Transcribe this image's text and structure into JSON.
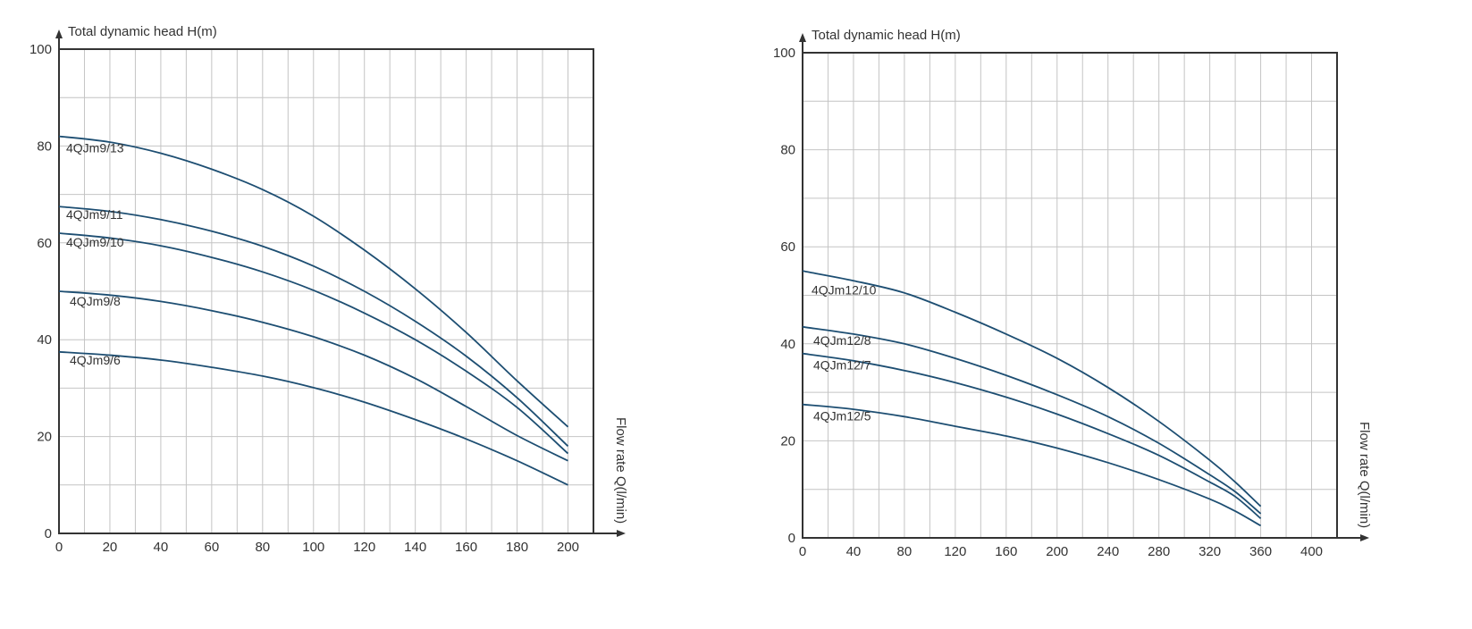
{
  "chart_data": [
    {
      "type": "line",
      "ylabel": "Total dynamic head H(m)",
      "xlabel": "Flow rate Q(l/min)",
      "xlim": [
        0,
        210
      ],
      "ylim": [
        0,
        100
      ],
      "x_ticks": [
        0,
        20,
        40,
        60,
        80,
        100,
        120,
        140,
        160,
        180,
        200
      ],
      "y_ticks": [
        0,
        20,
        40,
        60,
        80,
        100
      ],
      "x_grid_step": 10,
      "y_grid_step": 10,
      "grid": true,
      "line_color": "#1d4e72",
      "series": [
        {
          "name": "4QJm9/13",
          "x": [
            0,
            20,
            40,
            60,
            80,
            100,
            120,
            140,
            160,
            180,
            200
          ],
          "y": [
            82,
            80.8,
            78.5,
            75.2,
            71,
            65.5,
            58.5,
            50.5,
            41.5,
            31.5,
            22
          ]
        },
        {
          "name": "4QJm9/11",
          "x": [
            0,
            20,
            40,
            60,
            80,
            100,
            120,
            140,
            160,
            180,
            200
          ],
          "y": [
            67.5,
            66.5,
            64.8,
            62.4,
            59.3,
            55.2,
            50,
            43.8,
            36.6,
            28,
            18
          ]
        },
        {
          "name": "4QJm9/10",
          "x": [
            0,
            20,
            40,
            60,
            80,
            100,
            120,
            140,
            160,
            180,
            200
          ],
          "y": [
            62,
            61,
            59.4,
            57,
            54,
            50.2,
            45.5,
            40,
            33.5,
            26,
            16.5
          ]
        },
        {
          "name": "4QJm9/8",
          "x": [
            0,
            20,
            40,
            60,
            80,
            100,
            120,
            140,
            160,
            180,
            200
          ],
          "y": [
            50,
            49.2,
            47.9,
            46,
            43.6,
            40.6,
            36.8,
            32,
            26.2,
            20.2,
            15
          ]
        },
        {
          "name": "4QJm9/6",
          "x": [
            0,
            20,
            40,
            60,
            80,
            100,
            120,
            140,
            160,
            180,
            200
          ],
          "y": [
            37.5,
            36.8,
            35.8,
            34.3,
            32.5,
            30.1,
            27.1,
            23.5,
            19.5,
            15,
            10
          ]
        }
      ]
    },
    {
      "type": "line",
      "ylabel": "Total dynamic head H(m)",
      "xlabel": "Flow rate Q(l/min)",
      "xlim": [
        0,
        420
      ],
      "ylim": [
        0,
        100
      ],
      "x_ticks": [
        0,
        40,
        80,
        120,
        160,
        200,
        240,
        280,
        320,
        360,
        400
      ],
      "y_ticks": [
        0,
        20,
        40,
        60,
        80,
        100
      ],
      "x_grid_step": 20,
      "y_grid_step": 10,
      "grid": true,
      "line_color": "#1d4e72",
      "series": [
        {
          "name": "4QJm12/10",
          "x": [
            0,
            40,
            80,
            120,
            160,
            200,
            240,
            280,
            320,
            340,
            360
          ],
          "y": [
            55,
            53,
            50.5,
            46.5,
            42,
            37,
            31,
            24,
            16,
            11.5,
            6.5
          ]
        },
        {
          "name": "4QJm12/8",
          "x": [
            0,
            40,
            80,
            120,
            160,
            200,
            240,
            280,
            320,
            340,
            360
          ],
          "y": [
            43.5,
            42,
            40,
            37,
            33.5,
            29.5,
            25,
            19.5,
            13,
            9.5,
            5
          ]
        },
        {
          "name": "4QJm12/7",
          "x": [
            0,
            40,
            80,
            120,
            160,
            200,
            240,
            280,
            320,
            340,
            360
          ],
          "y": [
            38,
            36.5,
            34.5,
            32,
            29,
            25.5,
            21.5,
            17,
            11.5,
            8.5,
            4
          ]
        },
        {
          "name": "4QJm12/5",
          "x": [
            0,
            40,
            80,
            120,
            160,
            200,
            240,
            280,
            320,
            340,
            360
          ],
          "y": [
            27.5,
            26.5,
            25,
            23,
            21,
            18.5,
            15.5,
            12,
            8,
            5.5,
            2.5
          ]
        }
      ]
    }
  ]
}
